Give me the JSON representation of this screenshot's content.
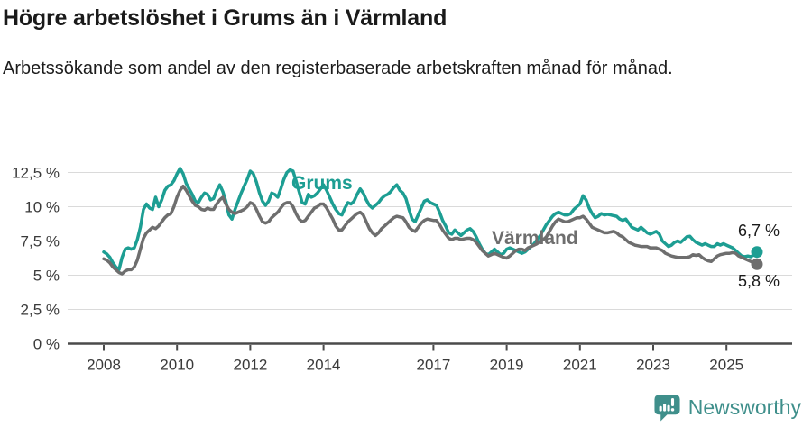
{
  "chart_data": {
    "type": "line",
    "title": "Högre arbetslöshet i Grums än i Värmland",
    "subtitle": "Arbetssökande som andel av den registerbaserade arbetskraften månad för månad.",
    "frequency": "monthly",
    "start_year": 2008,
    "x_start": "2008-01",
    "x_end": "2025-11",
    "ylim": [
      0,
      13.5
    ],
    "grid": true,
    "y_unit": "%",
    "legend_position": "inline-labels",
    "y_ticks": [
      {
        "value": 0,
        "label": "0 %"
      },
      {
        "value": 2.5,
        "label": "2,5 %"
      },
      {
        "value": 5,
        "label": "5 %"
      },
      {
        "value": 7.5,
        "label": "7,5 %"
      },
      {
        "value": 10,
        "label": "10 %"
      },
      {
        "value": 12.5,
        "label": "12,5 %"
      }
    ],
    "x_ticks": [
      {
        "year": 2008,
        "label": "2008"
      },
      {
        "year": 2010,
        "label": "2010"
      },
      {
        "year": 2012,
        "label": "2012"
      },
      {
        "year": 2014,
        "label": "2014"
      },
      {
        "year": 2017,
        "label": "2017"
      },
      {
        "year": 2019,
        "label": "2019"
      },
      {
        "year": 2021,
        "label": "2021"
      },
      {
        "year": 2023,
        "label": "2023"
      },
      {
        "year": 2025,
        "label": "2025"
      }
    ],
    "series": [
      {
        "id": "grums",
        "name": "Grums",
        "color": "#1D9E93",
        "end_label": "6,7 %",
        "end_value": 6.7,
        "values": [
          6.7,
          6.55,
          6.3,
          5.9,
          5.6,
          5.4,
          6.3,
          6.9,
          7.0,
          6.9,
          7.0,
          7.6,
          8.5,
          9.8,
          10.2,
          9.9,
          9.8,
          10.7,
          10.0,
          10.5,
          11.2,
          11.5,
          11.6,
          11.9,
          12.4,
          12.8,
          12.4,
          11.7,
          11.3,
          10.9,
          10.4,
          10.3,
          10.7,
          11.0,
          10.9,
          10.5,
          10.6,
          11.2,
          11.6,
          11.1,
          10.4,
          9.4,
          9.1,
          9.8,
          10.4,
          11.0,
          11.5,
          12.0,
          12.6,
          12.4,
          11.8,
          11.0,
          10.4,
          10.1,
          10.4,
          11.0,
          10.9,
          10.7,
          11.3,
          12.0,
          12.5,
          12.7,
          12.6,
          11.9,
          11.1,
          10.3,
          10.2,
          10.9,
          10.7,
          10.8,
          11.0,
          11.3,
          11.6,
          11.2,
          10.7,
          10.2,
          9.8,
          9.5,
          9.4,
          9.9,
          10.3,
          10.2,
          10.4,
          10.9,
          11.3,
          11.0,
          10.5,
          10.1,
          9.9,
          10.1,
          10.3,
          10.6,
          10.8,
          10.9,
          11.1,
          11.4,
          11.6,
          11.2,
          11.0,
          10.6,
          9.8,
          9.1,
          8.9,
          9.4,
          9.9,
          10.4,
          10.5,
          10.3,
          10.2,
          10.1,
          9.6,
          9.0,
          8.6,
          8.1,
          8.0,
          8.3,
          8.1,
          7.9,
          8.1,
          8.3,
          8.4,
          8.2,
          7.8,
          7.3,
          6.9,
          6.6,
          6.5,
          6.7,
          6.9,
          6.7,
          6.5,
          6.6,
          6.9,
          7.0,
          6.9,
          6.8,
          6.7,
          6.6,
          6.7,
          6.9,
          7.1,
          7.3,
          7.6,
          7.9,
          8.3,
          8.7,
          9.0,
          9.3,
          9.5,
          9.6,
          9.5,
          9.4,
          9.4,
          9.5,
          9.8,
          10.0,
          10.2,
          10.8,
          10.5,
          9.9,
          9.5,
          9.2,
          9.3,
          9.5,
          9.4,
          9.45,
          9.4,
          9.35,
          9.3,
          9.1,
          9.0,
          9.1,
          8.8,
          8.5,
          8.4,
          8.3,
          8.5,
          8.3,
          8.1,
          8.0,
          8.1,
          8.2,
          8.0,
          7.5,
          7.3,
          7.1,
          7.2,
          7.4,
          7.5,
          7.4,
          7.6,
          7.8,
          7.85,
          7.6,
          7.4,
          7.3,
          7.2,
          7.3,
          7.2,
          7.1,
          7.1,
          7.3,
          7.2,
          7.3,
          7.2,
          7.1,
          7.0,
          6.8,
          6.6,
          6.4,
          6.35,
          6.4,
          6.35,
          6.5,
          6.7
        ]
      },
      {
        "id": "varmland",
        "name": "Värmland",
        "color": "#6E6E6E",
        "end_label": "5,8 %",
        "end_value": 5.8,
        "values": [
          6.2,
          6.1,
          5.9,
          5.6,
          5.4,
          5.2,
          5.1,
          5.3,
          5.4,
          5.4,
          5.6,
          6.1,
          6.9,
          7.7,
          8.1,
          8.3,
          8.5,
          8.4,
          8.6,
          8.9,
          9.2,
          9.4,
          9.5,
          10.0,
          10.7,
          11.2,
          11.5,
          11.2,
          10.8,
          10.4,
          10.1,
          10.0,
          9.8,
          9.75,
          9.9,
          9.8,
          9.8,
          10.2,
          10.5,
          10.7,
          10.2,
          9.8,
          9.6,
          9.5,
          9.6,
          9.7,
          9.8,
          10.0,
          10.3,
          10.2,
          9.8,
          9.3,
          8.9,
          8.8,
          8.9,
          9.2,
          9.4,
          9.6,
          9.9,
          10.2,
          10.3,
          10.3,
          10.0,
          9.5,
          9.1,
          8.9,
          9.0,
          9.3,
          9.6,
          9.9,
          10.0,
          10.2,
          10.2,
          9.9,
          9.5,
          9.1,
          8.6,
          8.3,
          8.3,
          8.6,
          8.9,
          9.1,
          9.3,
          9.5,
          9.6,
          9.4,
          8.9,
          8.4,
          8.1,
          7.9,
          8.1,
          8.4,
          8.6,
          8.8,
          9.0,
          9.2,
          9.3,
          9.25,
          9.2,
          8.9,
          8.5,
          8.3,
          8.2,
          8.5,
          8.8,
          9.0,
          9.1,
          9.05,
          9.0,
          9.0,
          8.7,
          8.3,
          8.0,
          7.7,
          7.6,
          7.7,
          7.7,
          7.6,
          7.65,
          7.7,
          7.7,
          7.6,
          7.4,
          7.1,
          6.8,
          6.6,
          6.4,
          6.5,
          6.6,
          6.5,
          6.4,
          6.3,
          6.25,
          6.4,
          6.6,
          6.8,
          6.9,
          6.9,
          6.8,
          7.0,
          7.1,
          7.2,
          7.3,
          7.5,
          7.6,
          7.8,
          8.2,
          8.6,
          8.9,
          9.1,
          9.0,
          8.9,
          8.9,
          9.0,
          9.1,
          9.2,
          9.2,
          9.3,
          9.1,
          8.8,
          8.5,
          8.4,
          8.3,
          8.2,
          8.1,
          8.1,
          8.15,
          8.2,
          8.1,
          7.9,
          7.8,
          7.6,
          7.4,
          7.3,
          7.2,
          7.15,
          7.1,
          7.1,
          7.1,
          7.0,
          7.0,
          7.0,
          6.9,
          6.8,
          6.6,
          6.5,
          6.4,
          6.35,
          6.3,
          6.3,
          6.3,
          6.3,
          6.35,
          6.5,
          6.45,
          6.5,
          6.3,
          6.15,
          6.05,
          6.0,
          6.2,
          6.4,
          6.5,
          6.55,
          6.6,
          6.6,
          6.65,
          6.6,
          6.4,
          6.3,
          6.2,
          6.1,
          6.0,
          5.9,
          5.8
        ]
      }
    ]
  },
  "footer": {
    "brand": "Newsworthy"
  },
  "colors": {
    "accent_teal": "#1D9E93",
    "series_gray": "#6E6E6E",
    "brand": "#3F8F8B",
    "axis": "#4A4A4A",
    "grid": "#DADADA",
    "text": "#1A1A1A"
  }
}
